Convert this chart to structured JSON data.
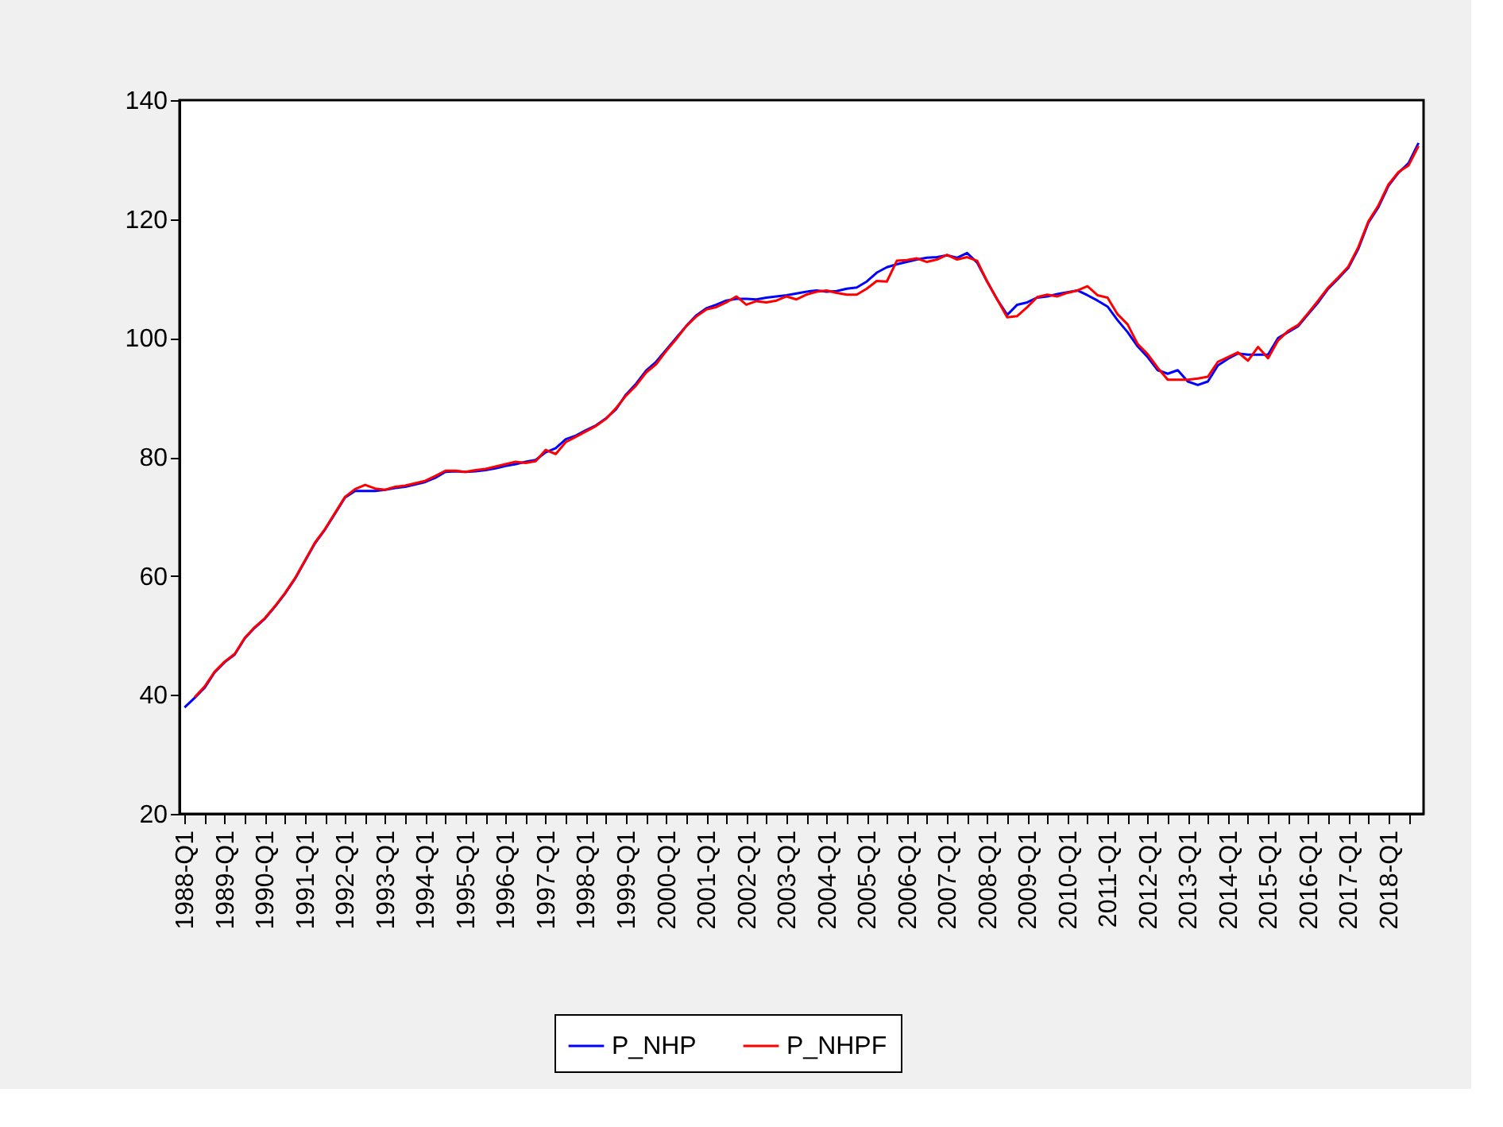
{
  "chart_data": {
    "type": "line",
    "categories": [
      "1988-Q1",
      null,
      null,
      null,
      "1989-Q1",
      null,
      null,
      null,
      "1990-Q1",
      null,
      null,
      null,
      "1991-Q1",
      null,
      null,
      null,
      "1992-Q1",
      null,
      null,
      null,
      "1993-Q1",
      null,
      null,
      null,
      "1994-Q1",
      null,
      null,
      null,
      "1995-Q1",
      null,
      null,
      null,
      "1996-Q1",
      null,
      null,
      null,
      "1997-Q1",
      null,
      null,
      null,
      "1998-Q1",
      null,
      null,
      null,
      "1999-Q1",
      null,
      null,
      null,
      "2000-Q1",
      null,
      null,
      null,
      "2001-Q1",
      null,
      null,
      null,
      "2002-Q1",
      null,
      null,
      null,
      "2003-Q1",
      null,
      null,
      null,
      "2004-Q1",
      null,
      null,
      null,
      "2005-Q1",
      null,
      null,
      null,
      "2006-Q1",
      null,
      null,
      null,
      "2007-Q1",
      null,
      null,
      null,
      "2008-Q1",
      null,
      null,
      null,
      "2009-Q1",
      null,
      null,
      null,
      "2010-Q1",
      null,
      null,
      null,
      "2011-Q1",
      null,
      null,
      null,
      "2012-Q1",
      null,
      null,
      null,
      "2013-Q1",
      null,
      null,
      null,
      "2014-Q1",
      null,
      null,
      null,
      "2015-Q1",
      null,
      null,
      null,
      "2016-Q1",
      null,
      null,
      null,
      "2017-Q1",
      null,
      null,
      null,
      "2018-Q1",
      null,
      null,
      null
    ],
    "series": [
      {
        "name": "P_NHP",
        "color": "#0000ff",
        "values": [
          37.9,
          39.5,
          41.2,
          43.8,
          45.5,
          46.8,
          49.5,
          51.3,
          52.8,
          54.8,
          57.0,
          59.5,
          62.5,
          65.5,
          67.8,
          70.5,
          73.2,
          74.3,
          74.3,
          74.3,
          74.5,
          74.8,
          75.0,
          75.4,
          75.8,
          76.5,
          77.5,
          77.6,
          77.5,
          77.6,
          77.8,
          78.1,
          78.5,
          78.8,
          79.2,
          79.5,
          80.8,
          81.5,
          83.0,
          83.6,
          84.5,
          85.3,
          86.5,
          88.0,
          90.5,
          92.3,
          94.5,
          96.0,
          98.0,
          100.0,
          102.0,
          103.8,
          105.0,
          105.6,
          106.3,
          106.6,
          106.6,
          106.5,
          106.8,
          107.0,
          107.2,
          107.5,
          107.8,
          108.0,
          107.8,
          107.9,
          108.3,
          108.5,
          109.5,
          111.0,
          111.9,
          112.4,
          112.8,
          113.2,
          113.5,
          113.6,
          113.9,
          113.5,
          114.3,
          112.7,
          109.5,
          106.5,
          103.9,
          105.6,
          106.0,
          106.8,
          107.0,
          107.4,
          107.7,
          108.0,
          107.2,
          106.3,
          105.3,
          103.0,
          101.0,
          98.6,
          96.8,
          94.6,
          94.0,
          94.6,
          92.7,
          92.1,
          92.7,
          95.4,
          96.5,
          97.4,
          97.2,
          97.2,
          97.2,
          100.0,
          101.0,
          102.0,
          104.0,
          106.0,
          108.3,
          110.0,
          111.8,
          115.0,
          119.4,
          122.0,
          125.6,
          127.8,
          129.4,
          132.8
        ]
      },
      {
        "name": "P_NHPF",
        "color": "#ff0000",
        "values": [
          null,
          39.6,
          41.4,
          43.9,
          45.6,
          46.9,
          49.6,
          51.4,
          52.9,
          54.9,
          57.1,
          59.6,
          62.6,
          65.6,
          67.9,
          70.6,
          73.3,
          74.6,
          75.3,
          74.7,
          74.5,
          75.0,
          75.2,
          75.6,
          76.0,
          76.8,
          77.7,
          77.7,
          77.5,
          77.8,
          78.0,
          78.4,
          78.8,
          79.2,
          79.0,
          79.3,
          81.2,
          80.5,
          82.5,
          83.4,
          84.3,
          85.2,
          86.4,
          88.2,
          90.3,
          92.0,
          94.2,
          95.6,
          97.8,
          99.8,
          102.0,
          103.6,
          104.8,
          105.2,
          106.0,
          107.0,
          105.6,
          106.2,
          106.0,
          106.3,
          107.0,
          106.5,
          107.3,
          107.8,
          108.0,
          107.6,
          107.3,
          107.3,
          108.3,
          109.6,
          109.5,
          113.0,
          113.1,
          113.4,
          112.8,
          113.2,
          114.0,
          113.2,
          113.6,
          113.0,
          109.5,
          106.5,
          103.5,
          103.7,
          105.2,
          106.9,
          107.3,
          107.0,
          107.6,
          108.0,
          108.7,
          107.2,
          106.8,
          104.0,
          102.3,
          99.0,
          97.3,
          95.0,
          93.0,
          93.0,
          93.0,
          93.2,
          93.5,
          96.0,
          96.8,
          97.6,
          96.2,
          98.5,
          96.6,
          99.6,
          101.2,
          102.2,
          104.2,
          106.3,
          108.5,
          110.2,
          112.0,
          115.3,
          119.6,
          122.3,
          125.8,
          127.9,
          129.0,
          132.3
        ]
      }
    ],
    "ylim": [
      20,
      140
    ],
    "yticks": [
      20,
      40,
      60,
      80,
      100,
      120,
      140
    ],
    "grid": false,
    "legend": "bottom",
    "line_style": "solid"
  }
}
